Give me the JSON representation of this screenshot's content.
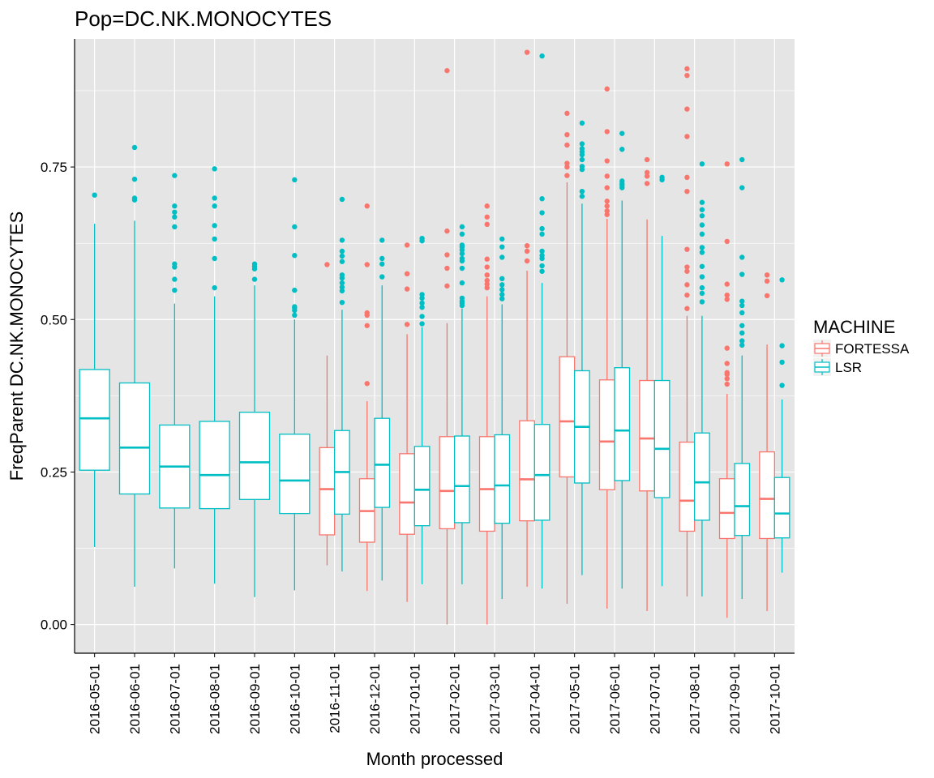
{
  "colors": {
    "panel_bg": "#E5E5E5",
    "grid": "#FFFFFF",
    "FORTESSA": "#F8766D",
    "LSR": "#00BFC4"
  },
  "chart_data": {
    "type": "box",
    "title": "Pop=DC.NK.MONOCYTES",
    "xlabel": "Month processed",
    "ylabel": "FreqParent  DC.NK.MONOCYTES",
    "ylim": [
      -0.047,
      0.96
    ],
    "yticks": [
      0.0,
      0.25,
      0.5,
      0.75
    ],
    "ytick_labels": [
      "0.00",
      "0.25",
      "0.50",
      "0.75"
    ],
    "grid": true,
    "legend": {
      "title": "MACHINE",
      "position": "right",
      "entries": [
        "FORTESSA",
        "LSR"
      ]
    },
    "categories": [
      "2016-05-01",
      "2016-06-01",
      "2016-07-01",
      "2016-08-01",
      "2016-09-01",
      "2016-10-01",
      "2016-11-01",
      "2016-12-01",
      "2017-01-01",
      "2017-02-01",
      "2017-03-01",
      "2017-04-01",
      "2017-05-01",
      "2017-06-01",
      "2017-07-01",
      "2017-08-01",
      "2017-09-01",
      "2017-10-01"
    ],
    "series": [
      {
        "name": "FORTESSA",
        "boxes": [
          null,
          null,
          null,
          null,
          null,
          null,
          {
            "q1": 0.147,
            "median": 0.222,
            "q3": 0.29,
            "whisker_low": 0.097,
            "whisker_high": 0.441,
            "outliers": [
              0.59
            ]
          },
          {
            "q1": 0.135,
            "median": 0.186,
            "q3": 0.239,
            "whisker_low": 0.055,
            "whisker_high": 0.366,
            "outliers": [
              0.395,
              0.49,
              0.507,
              0.511,
              0.59,
              0.686
            ]
          },
          {
            "q1": 0.148,
            "median": 0.2,
            "q3": 0.28,
            "whisker_low": 0.037,
            "whisker_high": 0.476,
            "outliers": [
              0.492,
              0.55,
              0.575,
              0.622
            ]
          },
          {
            "q1": 0.157,
            "median": 0.219,
            "q3": 0.308,
            "whisker_low": 0.0,
            "whisker_high": 0.494,
            "outliers": [
              0.555,
              0.584,
              0.606,
              0.645,
              0.908
            ]
          },
          {
            "q1": 0.153,
            "median": 0.222,
            "q3": 0.308,
            "whisker_low": 0.0,
            "whisker_high": 0.538,
            "outliers": [
              0.552,
              0.558,
              0.564,
              0.573,
              0.586,
              0.599,
              0.656,
              0.668,
              0.686
            ]
          },
          {
            "q1": 0.17,
            "median": 0.238,
            "q3": 0.334,
            "whisker_low": 0.062,
            "whisker_high": 0.58,
            "outliers": [
              0.596,
              0.612,
              0.621,
              0.938
            ]
          },
          {
            "q1": 0.242,
            "median": 0.333,
            "q3": 0.439,
            "whisker_low": 0.034,
            "whisker_high": 0.725,
            "outliers": [
              0.736,
              0.75,
              0.756,
              0.786,
              0.803,
              0.838
            ]
          },
          {
            "q1": 0.221,
            "median": 0.3,
            "q3": 0.401,
            "whisker_low": 0.026,
            "whisker_high": 0.665,
            "outliers": [
              0.672,
              0.678,
              0.686,
              0.694,
              0.716,
              0.735,
              0.76,
              0.808,
              0.878
            ]
          },
          {
            "q1": 0.219,
            "median": 0.305,
            "q3": 0.4,
            "whisker_low": 0.022,
            "whisker_high": 0.664,
            "outliers": [
              0.723,
              0.735,
              0.741,
              0.762
            ]
          },
          {
            "q1": 0.153,
            "median": 0.203,
            "q3": 0.299,
            "whisker_low": 0.046,
            "whisker_high": 0.506,
            "outliers": [
              0.518,
              0.54,
              0.557,
              0.579,
              0.586,
              0.615,
              0.71,
              0.733,
              0.8,
              0.845,
              0.9,
              0.911
            ]
          },
          {
            "q1": 0.141,
            "median": 0.183,
            "q3": 0.239,
            "whisker_low": 0.011,
            "whisker_high": 0.378,
            "outliers": [
              0.394,
              0.403,
              0.41,
              0.413,
              0.428,
              0.453,
              0.533,
              0.54,
              0.558,
              0.628,
              0.755
            ]
          },
          {
            "q1": 0.141,
            "median": 0.206,
            "q3": 0.283,
            "whisker_low": 0.022,
            "whisker_high": 0.459,
            "outliers": [
              0.539,
              0.563,
              0.573
            ]
          }
        ]
      },
      {
        "name": "LSR",
        "boxes": [
          {
            "q1": 0.253,
            "median": 0.338,
            "q3": 0.418,
            "whisker_low": 0.127,
            "whisker_high": 0.657,
            "outliers": [
              0.704
            ]
          },
          {
            "q1": 0.214,
            "median": 0.29,
            "q3": 0.396,
            "whisker_low": 0.062,
            "whisker_high": 0.662,
            "outliers": [
              0.696,
              0.699,
              0.73,
              0.782
            ]
          },
          {
            "q1": 0.191,
            "median": 0.259,
            "q3": 0.327,
            "whisker_low": 0.092,
            "whisker_high": 0.526,
            "outliers": [
              0.548,
              0.566,
              0.586,
              0.591,
              0.652,
              0.668,
              0.676,
              0.686,
              0.736
            ]
          },
          {
            "q1": 0.19,
            "median": 0.245,
            "q3": 0.333,
            "whisker_low": 0.067,
            "whisker_high": 0.538,
            "outliers": [
              0.552,
              0.6,
              0.632,
              0.654,
              0.686,
              0.699,
              0.747
            ]
          },
          {
            "q1": 0.205,
            "median": 0.266,
            "q3": 0.348,
            "whisker_low": 0.045,
            "whisker_high": 0.556,
            "outliers": [
              0.566,
              0.583,
              0.587,
              0.591
            ]
          },
          {
            "q1": 0.182,
            "median": 0.236,
            "q3": 0.312,
            "whisker_low": 0.056,
            "whisker_high": 0.5,
            "outliers": [
              0.507,
              0.515,
              0.519,
              0.521,
              0.548,
              0.605,
              0.652,
              0.729
            ]
          },
          {
            "q1": 0.181,
            "median": 0.25,
            "q3": 0.318,
            "whisker_low": 0.087,
            "whisker_high": 0.516,
            "outliers": [
              0.528,
              0.547,
              0.553,
              0.56,
              0.568,
              0.573,
              0.595,
              0.604,
              0.612,
              0.63,
              0.697
            ]
          },
          {
            "q1": 0.192,
            "median": 0.262,
            "q3": 0.338,
            "whisker_low": 0.072,
            "whisker_high": 0.556,
            "outliers": [
              0.57,
              0.591,
              0.6,
              0.63
            ]
          },
          {
            "q1": 0.162,
            "median": 0.221,
            "q3": 0.292,
            "whisker_low": 0.066,
            "whisker_high": 0.487,
            "outliers": [
              0.493,
              0.505,
              0.52,
              0.527,
              0.535,
              0.541,
              0.629,
              0.633
            ]
          },
          {
            "q1": 0.167,
            "median": 0.227,
            "q3": 0.309,
            "whisker_low": 0.066,
            "whisker_high": 0.518,
            "outliers": [
              0.523,
              0.527,
              0.53,
              0.535,
              0.56,
              0.584,
              0.596,
              0.6,
              0.608,
              0.614,
              0.619,
              0.622,
              0.64,
              0.652
            ]
          },
          {
            "q1": 0.166,
            "median": 0.228,
            "q3": 0.311,
            "whisker_low": 0.042,
            "whisker_high": 0.525,
            "outliers": [
              0.534,
              0.541,
              0.549,
              0.557,
              0.567,
              0.602,
              0.619,
              0.632
            ]
          },
          {
            "q1": 0.171,
            "median": 0.245,
            "q3": 0.328,
            "whisker_low": 0.059,
            "whisker_high": 0.56,
            "outliers": [
              0.579,
              0.588,
              0.6,
              0.605,
              0.612,
              0.64,
              0.649,
              0.675,
              0.698,
              0.932
            ]
          },
          {
            "q1": 0.232,
            "median": 0.324,
            "q3": 0.416,
            "whisker_low": 0.081,
            "whisker_high": 0.69,
            "outliers": [
              0.702,
              0.71,
              0.746,
              0.751,
              0.762,
              0.77,
              0.775,
              0.78,
              0.788,
              0.822
            ]
          },
          {
            "q1": 0.236,
            "median": 0.318,
            "q3": 0.421,
            "whisker_low": 0.059,
            "whisker_high": 0.695,
            "outliers": [
              0.716,
              0.72,
              0.723,
              0.727,
              0.779,
              0.805
            ]
          },
          {
            "q1": 0.208,
            "median": 0.288,
            "q3": 0.4,
            "whisker_low": 0.063,
            "whisker_high": 0.637,
            "outliers": [
              0.729,
              0.733
            ]
          },
          {
            "q1": 0.171,
            "median": 0.233,
            "q3": 0.314,
            "whisker_low": 0.046,
            "whisker_high": 0.506,
            "outliers": [
              0.529,
              0.543,
              0.552,
              0.57,
              0.587,
              0.61,
              0.618,
              0.64,
              0.655,
              0.67,
              0.68,
              0.692,
              0.755
            ]
          },
          {
            "q1": 0.146,
            "median": 0.194,
            "q3": 0.264,
            "whisker_low": 0.042,
            "whisker_high": 0.441,
            "outliers": [
              0.458,
              0.465,
              0.478,
              0.49,
              0.511,
              0.523,
              0.53,
              0.574,
              0.602,
              0.716,
              0.762
            ]
          },
          {
            "q1": 0.142,
            "median": 0.182,
            "q3": 0.241,
            "whisker_low": 0.085,
            "whisker_high": 0.369,
            "outliers": [
              0.392,
              0.43,
              0.457,
              0.565
            ]
          }
        ]
      }
    ]
  }
}
